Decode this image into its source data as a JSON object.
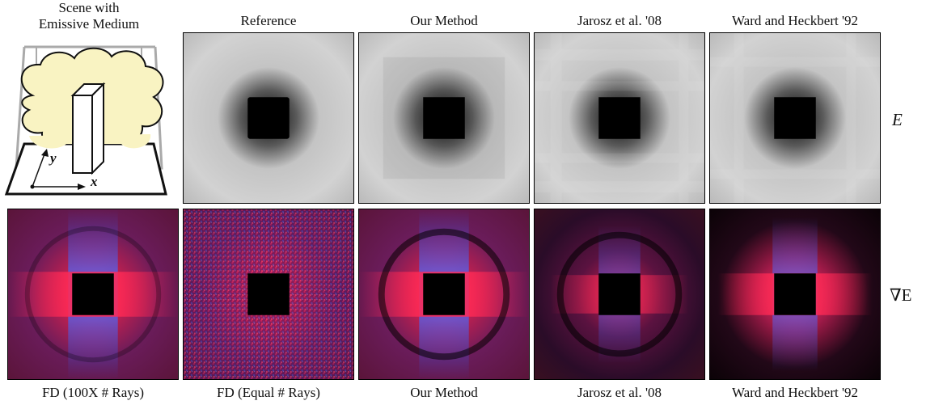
{
  "scene": {
    "title_line1": "Scene with",
    "title_line2": "Emissive Medium",
    "axis_y": "y",
    "axis_x": "x"
  },
  "top_row": {
    "labels": [
      "Reference",
      "Our Method",
      "Jarosz et al. '08",
      "Ward and Heckbert '92"
    ],
    "quantity": "E"
  },
  "bottom_row": {
    "labels": [
      "FD (100X # Rays)",
      "FD (Equal # Rays)",
      "Our Method",
      "Jarosz et al. '08",
      "Ward and Heckbert '92"
    ],
    "quantity": "∇E"
  },
  "colors": {
    "gradient_red": "#e8164a",
    "gradient_blue": "#4a3fc8",
    "occluder": "#000000"
  }
}
